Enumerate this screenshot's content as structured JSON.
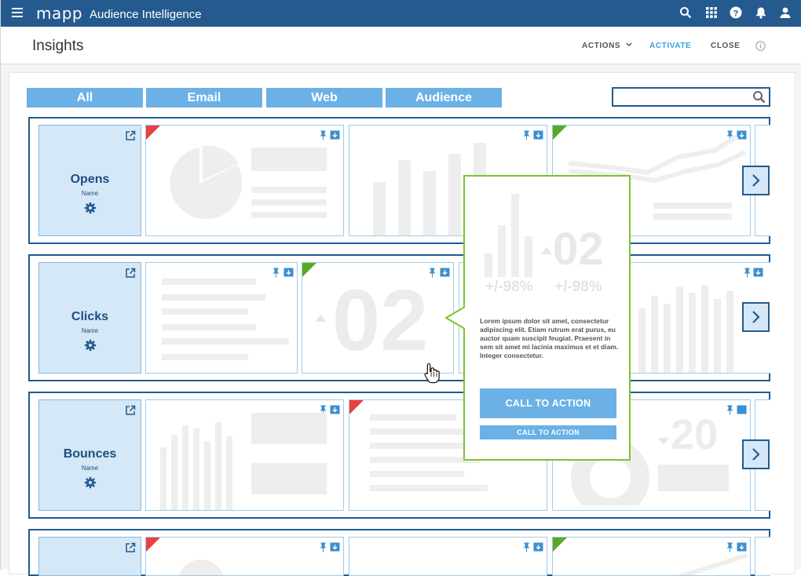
{
  "app": {
    "logo": "mapp",
    "title": "Audience Intelligence"
  },
  "header": {
    "icons": [
      "search-icon",
      "apps-grid-icon",
      "help-icon",
      "notifications-bell-icon",
      "user-account-icon"
    ]
  },
  "subheader": {
    "title": "Insights",
    "actions_label": "ACTIONS",
    "activate_label": "ACTIVATE",
    "close_label": "CLOSE"
  },
  "filters": [
    "All",
    "Email",
    "Web",
    "Audience"
  ],
  "search": {
    "placeholder": ""
  },
  "rows": [
    {
      "title": "Opens",
      "subtitle": "Name"
    },
    {
      "title": "Clicks",
      "subtitle": "Name"
    },
    {
      "title": "Bounces",
      "subtitle": "Name"
    },
    {
      "title": "",
      "subtitle": ""
    }
  ],
  "placeholder_text": {
    "num_a": "02",
    "num_b": "02",
    "num_c": "02",
    "num_d": "20",
    "pct_a": "+/-98%",
    "pct_b": "+/-98%"
  },
  "popup": {
    "body": "Lorem ipsum dolor sit amet, consectetur adipiscing elit. Etiam rutrum erat purus, eu auctor quam suscipit feugiat. Praesent in sem sit amet mi lacinia maximus et et diam. Integer consectetur.",
    "cta_primary": "CALL TO ACTION",
    "cta_secondary": "CALL TO ACTION"
  },
  "colors": {
    "brand": "#245a8e",
    "accent": "#6bb1e6",
    "activate": "#3aa1dc",
    "flag_red": "#e94040",
    "flag_green": "#5ba829",
    "popup_border": "#7cc42e"
  }
}
